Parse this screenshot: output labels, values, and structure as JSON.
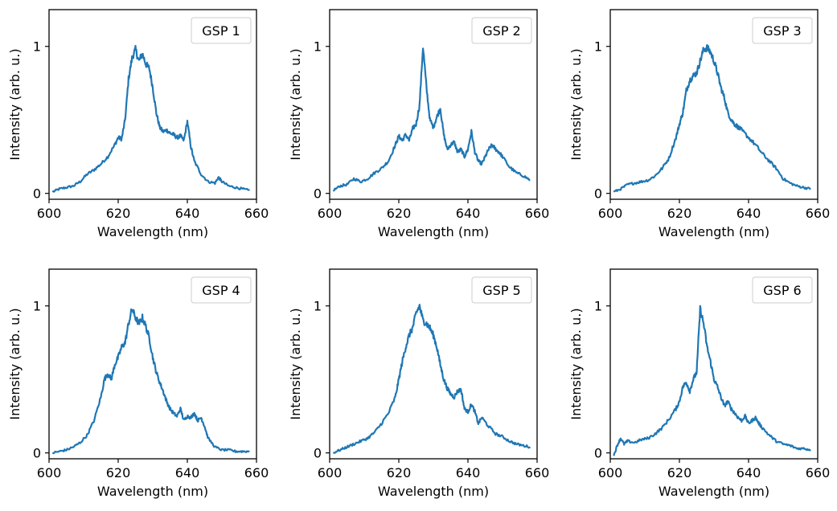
{
  "figure": {
    "series_color": "#1f77b4"
  },
  "chart_data": [
    {
      "type": "line",
      "legend": "GSP 1",
      "xlabel": "Wavelength (nm)",
      "ylabel": "Intensity (arb. u.)",
      "xlim": [
        600,
        660
      ],
      "ylim": [
        -0.04,
        1.25
      ],
      "xticks": [
        600,
        620,
        640,
        660
      ],
      "yticks": [
        0,
        1
      ],
      "legend_placement": "top-right",
      "grid": false,
      "x": [
        601,
        603,
        605,
        607,
        609,
        611,
        613,
        615,
        617,
        619,
        620,
        621,
        622,
        623,
        624,
        625,
        626,
        627,
        628,
        629,
        630,
        631,
        632,
        633,
        634,
        635,
        636,
        637,
        638,
        639,
        640,
        641,
        642,
        644,
        646,
        648,
        649,
        650,
        652,
        654,
        656,
        658
      ],
      "y": [
        0.01,
        0.03,
        0.04,
        0.05,
        0.08,
        0.13,
        0.16,
        0.2,
        0.25,
        0.33,
        0.38,
        0.37,
        0.5,
        0.78,
        0.92,
        0.98,
        0.9,
        0.95,
        0.88,
        0.85,
        0.72,
        0.55,
        0.45,
        0.42,
        0.43,
        0.41,
        0.4,
        0.38,
        0.39,
        0.36,
        0.49,
        0.32,
        0.22,
        0.13,
        0.08,
        0.07,
        0.11,
        0.08,
        0.05,
        0.04,
        0.03,
        0.02
      ]
    },
    {
      "type": "line",
      "legend": "GSP 2",
      "xlabel": "Wavelength (nm)",
      "ylabel": "Intensity (arb. u.)",
      "xlim": [
        600,
        660
      ],
      "ylim": [
        -0.04,
        1.25
      ],
      "xticks": [
        600,
        620,
        640,
        660
      ],
      "yticks": [
        0,
        1
      ],
      "legend_placement": "top-right",
      "grid": false,
      "x": [
        601,
        603,
        605,
        607,
        609,
        611,
        613,
        615,
        617,
        619,
        620,
        621,
        622,
        623,
        624,
        625,
        626,
        627,
        628,
        629,
        630,
        631,
        632,
        633,
        634,
        635,
        636,
        637,
        638,
        639,
        640,
        641,
        642,
        643,
        644,
        645,
        646,
        647,
        648,
        649,
        650,
        652,
        654,
        656,
        658
      ],
      "y": [
        0.02,
        0.05,
        0.06,
        0.1,
        0.08,
        0.1,
        0.14,
        0.17,
        0.22,
        0.33,
        0.39,
        0.36,
        0.4,
        0.36,
        0.44,
        0.47,
        0.6,
        1.0,
        0.72,
        0.5,
        0.45,
        0.52,
        0.58,
        0.4,
        0.3,
        0.33,
        0.35,
        0.28,
        0.3,
        0.25,
        0.3,
        0.42,
        0.28,
        0.22,
        0.2,
        0.25,
        0.3,
        0.33,
        0.3,
        0.28,
        0.25,
        0.18,
        0.14,
        0.12,
        0.09
      ]
    },
    {
      "type": "line",
      "legend": "GSP 3",
      "xlabel": "Wavelength (nm)",
      "ylabel": "Intensity (arb. u.)",
      "xlim": [
        600,
        660
      ],
      "ylim": [
        -0.04,
        1.25
      ],
      "xticks": [
        600,
        620,
        640,
        660
      ],
      "yticks": [
        0,
        1
      ],
      "legend_placement": "top-right",
      "grid": false,
      "x": [
        601,
        603,
        605,
        607,
        609,
        611,
        613,
        615,
        617,
        619,
        620,
        621,
        622,
        623,
        624,
        625,
        626,
        627,
        628,
        629,
        630,
        631,
        632,
        633,
        634,
        635,
        636,
        637,
        638,
        640,
        642,
        644,
        646,
        648,
        650,
        652,
        654,
        656,
        658
      ],
      "y": [
        0.01,
        0.03,
        0.06,
        0.07,
        0.08,
        0.09,
        0.12,
        0.17,
        0.24,
        0.38,
        0.47,
        0.55,
        0.7,
        0.77,
        0.8,
        0.82,
        0.9,
        0.98,
        0.99,
        0.96,
        0.9,
        0.82,
        0.72,
        0.65,
        0.55,
        0.5,
        0.47,
        0.45,
        0.43,
        0.38,
        0.33,
        0.27,
        0.22,
        0.17,
        0.1,
        0.07,
        0.05,
        0.04,
        0.03
      ]
    },
    {
      "type": "line",
      "legend": "GSP 4",
      "xlabel": "Wavelength (nm)",
      "ylabel": "Intensity (arb. u.)",
      "xlim": [
        600,
        660
      ],
      "ylim": [
        -0.04,
        1.25
      ],
      "xticks": [
        600,
        620,
        640,
        660
      ],
      "yticks": [
        0,
        1
      ],
      "legend_placement": "top-right",
      "grid": false,
      "x": [
        601,
        603,
        605,
        607,
        609,
        611,
        613,
        615,
        616,
        617,
        618,
        619,
        620,
        621,
        622,
        623,
        624,
        625,
        626,
        627,
        628,
        629,
        630,
        631,
        632,
        633,
        634,
        635,
        636,
        637,
        638,
        639,
        640,
        641,
        642,
        643,
        644,
        645,
        646,
        648,
        650,
        652,
        654,
        656,
        658
      ],
      "y": [
        0.0,
        0.01,
        0.02,
        0.04,
        0.07,
        0.12,
        0.22,
        0.38,
        0.5,
        0.54,
        0.5,
        0.6,
        0.65,
        0.72,
        0.75,
        0.88,
        0.98,
        0.92,
        0.88,
        0.92,
        0.86,
        0.78,
        0.65,
        0.55,
        0.48,
        0.42,
        0.35,
        0.3,
        0.27,
        0.25,
        0.3,
        0.22,
        0.25,
        0.24,
        0.27,
        0.22,
        0.24,
        0.18,
        0.1,
        0.04,
        0.02,
        0.02,
        0.01,
        0.01,
        0.01
      ]
    },
    {
      "type": "line",
      "legend": "GSP 5",
      "xlabel": "Wavelength (nm)",
      "ylabel": "Intensity (arb. u.)",
      "xlim": [
        600,
        660
      ],
      "ylim": [
        -0.04,
        1.25
      ],
      "xticks": [
        600,
        620,
        640,
        660
      ],
      "yticks": [
        0,
        1
      ],
      "legend_placement": "top-right",
      "grid": false,
      "x": [
        601,
        603,
        605,
        607,
        609,
        611,
        613,
        615,
        617,
        619,
        620,
        621,
        622,
        623,
        624,
        625,
        626,
        627,
        628,
        629,
        630,
        631,
        632,
        633,
        634,
        635,
        636,
        637,
        638,
        639,
        640,
        641,
        642,
        643,
        644,
        646,
        648,
        650,
        652,
        654,
        656,
        658
      ],
      "y": [
        0.0,
        0.02,
        0.04,
        0.06,
        0.08,
        0.1,
        0.14,
        0.2,
        0.27,
        0.38,
        0.5,
        0.62,
        0.72,
        0.8,
        0.85,
        0.95,
        1.0,
        0.9,
        0.88,
        0.85,
        0.8,
        0.72,
        0.6,
        0.5,
        0.44,
        0.4,
        0.38,
        0.42,
        0.43,
        0.3,
        0.28,
        0.33,
        0.28,
        0.2,
        0.24,
        0.18,
        0.13,
        0.11,
        0.08,
        0.06,
        0.05,
        0.04
      ]
    },
    {
      "type": "line",
      "legend": "GSP 6",
      "xlabel": "Wavelength (nm)",
      "ylabel": "Intensity (arb. u.)",
      "xlim": [
        600,
        660
      ],
      "ylim": [
        -0.04,
        1.25
      ],
      "xticks": [
        600,
        620,
        640,
        660
      ],
      "yticks": [
        0,
        1
      ],
      "legend_placement": "top-right",
      "grid": false,
      "x": [
        601,
        602,
        603,
        604,
        605,
        607,
        609,
        611,
        613,
        615,
        617,
        619,
        620,
        621,
        622,
        623,
        624,
        625,
        626,
        627,
        628,
        629,
        630,
        631,
        632,
        633,
        634,
        635,
        636,
        637,
        638,
        639,
        640,
        641,
        642,
        643,
        644,
        646,
        648,
        650,
        652,
        654,
        656,
        658
      ],
      "y": [
        -0.02,
        0.05,
        0.1,
        0.06,
        0.08,
        0.07,
        0.09,
        0.1,
        0.13,
        0.17,
        0.23,
        0.3,
        0.35,
        0.45,
        0.48,
        0.42,
        0.5,
        0.55,
        0.98,
        0.88,
        0.72,
        0.62,
        0.5,
        0.45,
        0.38,
        0.32,
        0.35,
        0.3,
        0.27,
        0.24,
        0.22,
        0.25,
        0.2,
        0.22,
        0.24,
        0.2,
        0.17,
        0.12,
        0.08,
        0.06,
        0.05,
        0.03,
        0.03,
        0.02
      ]
    }
  ]
}
